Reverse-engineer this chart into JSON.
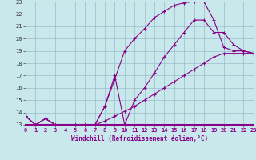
{
  "xlabel": "Windchill (Refroidissement éolien,°C)",
  "bg_color": "#c8e8ec",
  "grid_color": "#99bbcc",
  "line_color": "#880088",
  "xlim": [
    0,
    23
  ],
  "ylim": [
    13,
    23
  ],
  "xticks": [
    0,
    1,
    2,
    3,
    4,
    5,
    6,
    7,
    8,
    9,
    10,
    11,
    12,
    13,
    14,
    15,
    16,
    17,
    18,
    19,
    20,
    21,
    22,
    23
  ],
  "yticks": [
    13,
    14,
    15,
    16,
    17,
    18,
    19,
    20,
    21,
    22,
    23
  ],
  "line1_x": [
    0,
    1,
    2,
    3,
    4,
    5,
    6,
    7,
    8,
    9,
    10,
    11,
    12,
    13,
    14,
    15,
    16,
    17,
    18,
    19,
    20,
    21,
    22,
    23
  ],
  "line1_y": [
    13.7,
    13.0,
    13.5,
    13.0,
    13.0,
    13.0,
    13.0,
    13.0,
    14.5,
    16.7,
    19.0,
    20.0,
    20.8,
    21.7,
    22.2,
    22.7,
    22.9,
    23.0,
    23.0,
    21.5,
    19.3,
    19.0,
    19.0,
    18.8
  ],
  "line2_x": [
    0,
    1,
    2,
    3,
    4,
    5,
    6,
    7,
    8,
    9,
    10,
    11,
    12,
    13,
    14,
    15,
    16,
    17,
    18,
    19,
    20,
    21,
    22,
    23
  ],
  "line2_y": [
    13.7,
    13.0,
    13.5,
    13.0,
    13.0,
    13.0,
    13.0,
    13.0,
    14.5,
    17.0,
    13.0,
    15.0,
    16.0,
    17.2,
    18.5,
    19.5,
    20.5,
    21.5,
    21.5,
    20.5,
    20.5,
    19.5,
    19.0,
    18.8
  ],
  "line3_x": [
    0,
    1,
    2,
    3,
    4,
    5,
    6,
    7,
    8,
    9,
    10,
    11,
    12,
    13,
    14,
    15,
    16,
    17,
    18,
    19,
    20,
    21,
    22,
    23
  ],
  "line3_y": [
    13.7,
    13.0,
    13.5,
    13.0,
    13.0,
    13.0,
    13.0,
    13.0,
    13.3,
    13.7,
    14.1,
    14.5,
    15.0,
    15.5,
    16.0,
    16.5,
    17.0,
    17.5,
    18.0,
    18.5,
    18.8,
    18.8,
    18.8,
    18.8
  ],
  "markersize": 3.5,
  "linewidth": 0.8,
  "tick_fontsize": 5.0,
  "xlabel_fontsize": 5.5
}
